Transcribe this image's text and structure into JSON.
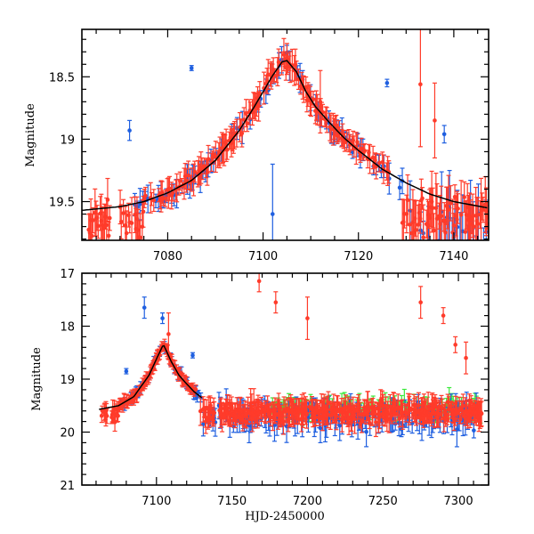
{
  "colors": {
    "red": "#ff3b2a",
    "blue": "#1f5fe0",
    "green": "#3ce83c",
    "model": "#000000",
    "frame": "#000000"
  },
  "chart_data": [
    {
      "type": "scatter",
      "panel": "top",
      "title": "",
      "xlabel": "",
      "ylabel": "Magnitude",
      "xlim": [
        7062,
        7147.3
      ],
      "ylim": [
        19.81,
        18.12
      ],
      "y_inverted": true,
      "grid": false,
      "x_ticks": [
        7080,
        7100,
        7120,
        7140
      ],
      "x_tick_labels": [
        "7080",
        "7100",
        "7120",
        "7140"
      ],
      "y_ticks": [
        18.5,
        19,
        19.5
      ],
      "y_tick_labels": [
        "18.5",
        "19",
        "19.5"
      ],
      "x_minor_step": 5,
      "y_minor_step": 0.1,
      "model_curve": {
        "name": "model light curve",
        "peak_x": 7104.5,
        "peak_mag": 18.37,
        "baseline_mag": 19.58,
        "x": [
          7062,
          7070,
          7075,
          7080,
          7085,
          7090,
          7095,
          7098,
          7100,
          7102,
          7104,
          7105,
          7107,
          7109,
          7111,
          7114,
          7117,
          7120,
          7125,
          7130,
          7135,
          7140,
          7147
        ],
        "y": [
          19.57,
          19.54,
          19.5,
          19.43,
          19.33,
          19.17,
          18.93,
          18.75,
          18.62,
          18.49,
          18.38,
          18.37,
          18.46,
          18.62,
          18.74,
          18.87,
          18.99,
          19.09,
          19.24,
          19.35,
          19.44,
          19.5,
          19.55
        ]
      },
      "series": [
        {
          "name": "red observations",
          "color": "red",
          "description": "dense points tracing the model from ~7064 to 7147, peak ~18.3 at 7103-7105, typical error bars 0.05-0.15 mag",
          "outliers": [
            {
              "x": 7133,
              "y": 18.56,
              "err": 0.5
            },
            {
              "x": 7136,
              "y": 18.85,
              "err": 0.3
            },
            {
              "x": 7112,
              "y": 18.7,
              "err": 0.25
            }
          ]
        },
        {
          "name": "blue observations",
          "color": "blue",
          "description": "sparser points from ~7072 to 7147 following the same curve",
          "outliers": [
            {
              "x": 7085,
              "y": 18.43,
              "err": 0.02
            },
            {
              "x": 7072,
              "y": 18.93,
              "err": 0.08
            },
            {
              "x": 7126,
              "y": 18.55,
              "err": 0.03
            },
            {
              "x": 7138,
              "y": 18.96,
              "err": 0.07
            },
            {
              "x": 7102,
              "y": 19.6,
              "err": 0.4
            }
          ]
        }
      ]
    },
    {
      "type": "scatter",
      "panel": "bottom",
      "title": "",
      "xlabel": "HJD-2450000",
      "ylabel": "Magnitude",
      "xlim": [
        7050.6,
        7320
      ],
      "ylim": [
        21,
        17
      ],
      "y_inverted": true,
      "grid": false,
      "x_ticks": [
        7100,
        7150,
        7200,
        7250,
        7300
      ],
      "x_tick_labels": [
        "7100",
        "7150",
        "7200",
        "7250",
        "7300"
      ],
      "y_ticks": [
        17,
        18,
        19,
        20,
        21
      ],
      "y_tick_labels": [
        "17",
        "18",
        "19",
        "20",
        "21"
      ],
      "x_minor_step": 10,
      "y_minor_step": 0.2,
      "model_curve": {
        "name": "model light curve",
        "x": [
          7062,
          7075,
          7085,
          7095,
          7100,
          7104,
          7105,
          7110,
          7115,
          7120,
          7125,
          7130
        ],
        "y": [
          19.57,
          19.5,
          19.33,
          18.93,
          18.62,
          18.38,
          18.37,
          18.68,
          18.93,
          19.09,
          19.24,
          19.35
        ]
      },
      "series": [
        {
          "name": "red observations",
          "color": "red",
          "description": "dense baseline at ~19.6 mag from 7062 to 7315 with event peak ~18.3 at 7104",
          "outliers": [
            {
              "x": 7168,
              "y": 17.15,
              "err": 0.2
            },
            {
              "x": 7179,
              "y": 17.55,
              "err": 0.2
            },
            {
              "x": 7200,
              "y": 17.85,
              "err": 0.4
            },
            {
              "x": 7275,
              "y": 17.55,
              "err": 0.3
            },
            {
              "x": 7290,
              "y": 17.8,
              "err": 0.15
            },
            {
              "x": 7108,
              "y": 18.15,
              "err": 0.4
            },
            {
              "x": 7305,
              "y": 18.6,
              "err": 0.3
            },
            {
              "x": 7298,
              "y": 18.35,
              "err": 0.15
            }
          ]
        },
        {
          "name": "blue observations",
          "color": "blue",
          "description": "points from ~7075 to 7310 at baseline ~19.6-19.9 with larger scatter",
          "outliers": [
            {
              "x": 7092,
              "y": 17.65,
              "err": 0.2
            },
            {
              "x": 7104,
              "y": 17.85,
              "err": 0.1
            },
            {
              "x": 7080,
              "y": 18.85,
              "err": 0.05
            },
            {
              "x": 7124,
              "y": 18.55,
              "err": 0.05
            }
          ]
        },
        {
          "name": "green observations",
          "color": "green",
          "description": "points from ~7175 to 7315 at baseline ~19.4-19.7",
          "outliers": []
        }
      ]
    }
  ]
}
